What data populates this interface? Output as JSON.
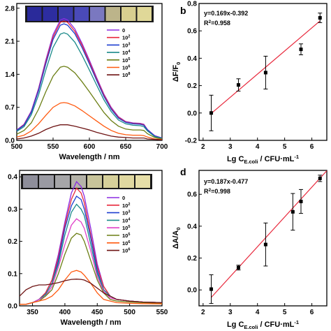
{
  "chart_data": [
    {
      "id": "a",
      "type": "line",
      "xlabel": "Wavelength / nm",
      "ylabel": "",
      "xlim": [
        500,
        700
      ],
      "ylim": [
        0.0,
        2.9
      ],
      "xticks": [
        "500",
        "550",
        "600",
        "650",
        "700"
      ],
      "yticks": [
        "0.0",
        "0.7",
        "1.4",
        "2.1",
        "2.8"
      ],
      "xtick_values": [
        500,
        550,
        600,
        650,
        700
      ],
      "ytick_values": [
        0.0,
        0.7,
        1.4,
        2.1,
        2.8
      ],
      "legend_position": "top-right",
      "x": [
        500,
        510,
        520,
        530,
        540,
        550,
        560,
        565,
        570,
        580,
        590,
        600,
        610,
        620,
        630,
        640,
        650,
        660,
        670,
        675,
        680,
        690,
        700
      ],
      "series": [
        {
          "name": "0",
          "color": "#8b2be2",
          "values": [
            0.22,
            0.34,
            0.62,
            1.1,
            1.7,
            2.24,
            2.55,
            2.58,
            2.55,
            2.36,
            2.05,
            1.7,
            1.33,
            0.98,
            0.7,
            0.5,
            0.4,
            0.37,
            0.36,
            0.34,
            0.23,
            0.1,
            0.05
          ]
        },
        {
          "name": "10",
          "sup": "2",
          "color": "#e8283c",
          "values": [
            0.21,
            0.33,
            0.6,
            1.07,
            1.66,
            2.19,
            2.5,
            2.53,
            2.5,
            2.31,
            2.01,
            1.66,
            1.3,
            0.96,
            0.68,
            0.49,
            0.39,
            0.36,
            0.35,
            0.33,
            0.22,
            0.09,
            0.05
          ]
        },
        {
          "name": "10",
          "sup": "3",
          "color": "#1e3fd0",
          "values": [
            0.21,
            0.32,
            0.59,
            1.05,
            1.62,
            2.14,
            2.44,
            2.47,
            2.44,
            2.26,
            1.96,
            1.62,
            1.27,
            0.93,
            0.66,
            0.47,
            0.38,
            0.35,
            0.34,
            0.32,
            0.22,
            0.09,
            0.05
          ]
        },
        {
          "name": "10",
          "sup": "4",
          "color": "#1b8a8a",
          "values": [
            0.19,
            0.29,
            0.54,
            0.96,
            1.49,
            1.97,
            2.25,
            2.28,
            2.25,
            2.08,
            1.8,
            1.49,
            1.17,
            0.86,
            0.61,
            0.43,
            0.35,
            0.32,
            0.31,
            0.29,
            0.2,
            0.08,
            0.04
          ]
        },
        {
          "name": "10",
          "sup": "5",
          "color": "#6b7e14",
          "values": [
            0.13,
            0.21,
            0.37,
            0.66,
            1.03,
            1.36,
            1.55,
            1.57,
            1.55,
            1.43,
            1.24,
            1.03,
            0.81,
            0.59,
            0.42,
            0.3,
            0.24,
            0.22,
            0.22,
            0.21,
            0.14,
            0.06,
            0.03
          ]
        },
        {
          "name": "10",
          "sup": "6",
          "color": "#ff5a10",
          "values": [
            0.07,
            0.11,
            0.2,
            0.35,
            0.53,
            0.7,
            0.79,
            0.8,
            0.79,
            0.73,
            0.63,
            0.52,
            0.41,
            0.3,
            0.21,
            0.15,
            0.12,
            0.11,
            0.11,
            0.1,
            0.07,
            0.03,
            0.02
          ]
        },
        {
          "name": "10",
          "sup": "8",
          "color": "#6e1414",
          "values": [
            0.03,
            0.05,
            0.09,
            0.15,
            0.23,
            0.29,
            0.33,
            0.33,
            0.33,
            0.3,
            0.26,
            0.22,
            0.17,
            0.13,
            0.09,
            0.07,
            0.06,
            0.05,
            0.05,
            0.05,
            0.03,
            0.02,
            0.01
          ]
        }
      ],
      "strip_colors": [
        "#2a2a9a",
        "#2d2da0",
        "#3a3aaa",
        "#4a4ab8",
        "#7a78c0",
        "#bcb48a",
        "#d8cf90",
        "#e0d898"
      ]
    },
    {
      "id": "b",
      "panel_label": "b",
      "type": "scatter",
      "xlabel": "Lg C",
      "xlabel_sub": "E.coli",
      "xlabel_tail": " / CFU·mL",
      "xlabel_sup": "-1",
      "ylabel": "ΔF/F",
      "ylabel_sub": "0",
      "xlim": [
        1.85,
        6.55
      ],
      "ylim": [
        -0.2,
        0.8
      ],
      "xticks": [
        "2",
        "3",
        "4",
        "5",
        "6"
      ],
      "xtick_values": [
        2,
        3,
        4,
        5,
        6
      ],
      "yticks": [
        "-0.2",
        "0.0",
        "0.2",
        "0.4",
        "0.6",
        "0.8"
      ],
      "ytick_values": [
        -0.2,
        0.0,
        0.2,
        0.4,
        0.6,
        0.8
      ],
      "equation": "y=0.169x-0.392",
      "r2_label": "R",
      "r2_sup": "2",
      "r2_value": "=0.958",
      "fit": {
        "slope": 0.169,
        "intercept": -0.392,
        "x_range": [
          2.3,
          6.3
        ],
        "color": "#e8283c"
      },
      "x": [
        2.3,
        3.3,
        4.3,
        5.6,
        6.3
      ],
      "y": [
        0.0,
        0.205,
        0.295,
        0.465,
        0.695
      ],
      "yerr": [
        0.13,
        0.045,
        0.12,
        0.04,
        0.035
      ]
    },
    {
      "id": "c",
      "type": "line",
      "xlabel": "Wavelength / nm",
      "ylabel": "",
      "xlim": [
        330,
        550
      ],
      "ylim": [
        0.0,
        0.42
      ],
      "xticks": [
        "350",
        "400",
        "450",
        "500",
        "550"
      ],
      "xtick_values": [
        350,
        400,
        450,
        500,
        550
      ],
      "yticks": [
        "0.0",
        "0.1",
        "0.2",
        "0.3",
        "0.4"
      ],
      "ytick_values": [
        0.0,
        0.1,
        0.2,
        0.3,
        0.4
      ],
      "legend_position": "top-right",
      "x": [
        330,
        340,
        350,
        360,
        370,
        380,
        390,
        400,
        410,
        418,
        425,
        430,
        440,
        450,
        460,
        470,
        480,
        500,
        520,
        550
      ],
      "series": [
        {
          "name": "0",
          "color": "#8b2be2",
          "values": [
            0.005,
            0.005,
            0.01,
            0.02,
            0.04,
            0.08,
            0.16,
            0.26,
            0.35,
            0.385,
            0.37,
            0.34,
            0.24,
            0.13,
            0.06,
            0.03,
            0.02,
            0.015,
            0.012,
            0.01
          ]
        },
        {
          "name": "10",
          "sup": "2",
          "color": "#e8283c",
          "values": [
            0.005,
            0.005,
            0.01,
            0.02,
            0.04,
            0.08,
            0.15,
            0.25,
            0.33,
            0.365,
            0.35,
            0.32,
            0.22,
            0.12,
            0.06,
            0.03,
            0.02,
            0.015,
            0.012,
            0.01
          ]
        },
        {
          "name": "10",
          "sup": "3",
          "color": "#1e3fd0",
          "values": [
            0.005,
            0.005,
            0.01,
            0.02,
            0.035,
            0.07,
            0.14,
            0.24,
            0.31,
            0.34,
            0.33,
            0.3,
            0.21,
            0.11,
            0.05,
            0.03,
            0.02,
            0.015,
            0.012,
            0.01
          ]
        },
        {
          "name": "10",
          "sup": "4",
          "color": "#1b8a8a",
          "values": [
            0.005,
            0.005,
            0.01,
            0.02,
            0.035,
            0.07,
            0.13,
            0.22,
            0.29,
            0.315,
            0.3,
            0.28,
            0.19,
            0.1,
            0.05,
            0.03,
            0.02,
            0.015,
            0.012,
            0.01
          ]
        },
        {
          "name": "10",
          "sup": "5",
          "color": "#e040c8",
          "values": [
            0.005,
            0.005,
            0.01,
            0.02,
            0.03,
            0.06,
            0.12,
            0.19,
            0.25,
            0.27,
            0.26,
            0.24,
            0.17,
            0.09,
            0.045,
            0.025,
            0.02,
            0.015,
            0.012,
            0.01
          ]
        },
        {
          "name": "10",
          "sup": "5",
          "color": "#6b7e14",
          "values": [
            0.005,
            0.005,
            0.01,
            0.015,
            0.03,
            0.05,
            0.1,
            0.16,
            0.21,
            0.225,
            0.22,
            0.2,
            0.14,
            0.08,
            0.04,
            0.02,
            0.015,
            0.012,
            0.01,
            0.008
          ]
        },
        {
          "name": "10",
          "sup": "6",
          "color": "#ff5a10",
          "values": [
            0.005,
            0.005,
            0.01,
            0.015,
            0.02,
            0.03,
            0.05,
            0.08,
            0.105,
            0.11,
            0.105,
            0.095,
            0.07,
            0.04,
            0.02,
            0.015,
            0.01,
            0.008,
            0.007,
            0.006
          ]
        },
        {
          "name": "10",
          "sup": "6",
          "color": "#6e1414",
          "values": [
            0.03,
            0.05,
            0.06,
            0.065,
            0.065,
            0.068,
            0.072,
            0.078,
            0.082,
            0.083,
            0.082,
            0.08,
            0.07,
            0.055,
            0.04,
            0.03,
            0.02,
            0.015,
            0.012,
            0.01
          ]
        }
      ],
      "strip_colors": [
        "#8e8e9a",
        "#9a9aa2",
        "#a6a6a8",
        "#b4b2a8",
        "#c8c49a",
        "#d6d09a",
        "#e0d8a0",
        "#e6dea8"
      ]
    },
    {
      "id": "d",
      "panel_label": "d",
      "type": "scatter",
      "xlabel": "Lg C",
      "xlabel_sub": "E.coli",
      "xlabel_tail": " / CFU·mL",
      "xlabel_sup": "-1",
      "ylabel": "ΔA/A",
      "ylabel_sub": "0",
      "xlim": [
        1.85,
        6.55
      ],
      "ylim": [
        -0.1,
        0.75
      ],
      "xticks": [
        "2",
        "3",
        "4",
        "5",
        "6"
      ],
      "xtick_values": [
        2,
        3,
        4,
        5,
        6
      ],
      "yticks": [
        "0.0",
        "0.2",
        "0.4",
        "0.6"
      ],
      "ytick_values": [
        0.0,
        0.2,
        0.4,
        0.6
      ],
      "equation": "y=0.187x-0.477",
      "r2_label": "R",
      "r2_sup": "2",
      "r2_value": "=0.998",
      "fit": {
        "slope": 0.187,
        "intercept": -0.477,
        "x_range": [
          2.3,
          6.55
        ],
        "color": "#e8283c"
      },
      "x": [
        2.3,
        3.3,
        4.3,
        5.3,
        5.6,
        6.3
      ],
      "y": [
        0.005,
        0.14,
        0.285,
        0.49,
        0.555,
        0.7
      ],
      "yerr": [
        0.09,
        0.015,
        0.135,
        0.115,
        0.075,
        0.02
      ]
    }
  ]
}
